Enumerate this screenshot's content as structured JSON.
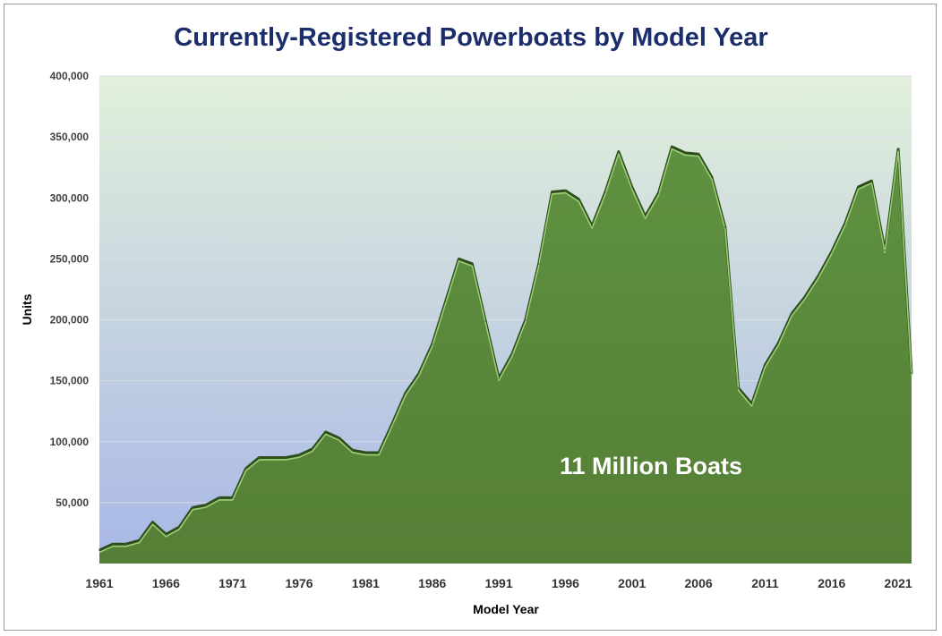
{
  "chart_data": {
    "type": "area",
    "title": "Currently-Registered Powerboats by Model Year",
    "xlabel": "Model Year",
    "ylabel": "Units",
    "annotation": "11 Million Boats",
    "xlim": [
      1961,
      2022
    ],
    "ylim": [
      0,
      400000
    ],
    "yticks": [
      50000,
      100000,
      150000,
      200000,
      250000,
      300000,
      350000,
      400000
    ],
    "ytick_labels": [
      "50,000",
      "100,000",
      "150,000",
      "200,000",
      "250,000",
      "300,000",
      "350,000",
      "400,000"
    ],
    "xticks": [
      1961,
      1966,
      1971,
      1976,
      1981,
      1986,
      1991,
      1996,
      2001,
      2006,
      2011,
      2016,
      2021
    ],
    "xtick_labels": [
      "1961",
      "1966",
      "1971",
      "1976",
      "1981",
      "1986",
      "1991",
      "1996",
      "2001",
      "2006",
      "2011",
      "2016",
      "2021"
    ],
    "grid": true,
    "colors": {
      "fill": "#5a8a3a",
      "edge_highlight": "#9bcf77",
      "title": "#1b2d6b",
      "bg_top": "#e2f0db",
      "bg_bottom": "#a8b7e6"
    },
    "x": [
      1961,
      1962,
      1963,
      1964,
      1965,
      1966,
      1967,
      1968,
      1969,
      1970,
      1971,
      1972,
      1973,
      1974,
      1975,
      1976,
      1977,
      1978,
      1979,
      1980,
      1981,
      1982,
      1983,
      1984,
      1985,
      1986,
      1987,
      1988,
      1989,
      1990,
      1991,
      1992,
      1993,
      1994,
      1995,
      1996,
      1997,
      1998,
      1999,
      2000,
      2001,
      2002,
      2003,
      2004,
      2005,
      2006,
      2007,
      2008,
      2009,
      2010,
      2011,
      2012,
      2013,
      2014,
      2015,
      2016,
      2017,
      2018,
      2019,
      2020,
      2021,
      2022
    ],
    "values": [
      11000,
      16000,
      16000,
      19000,
      34000,
      24000,
      30000,
      46000,
      48000,
      54000,
      54000,
      78000,
      87000,
      87000,
      87000,
      89000,
      94000,
      108000,
      103000,
      93000,
      91000,
      91000,
      115000,
      140000,
      156000,
      180000,
      215000,
      250000,
      246000,
      199000,
      152000,
      172000,
      200000,
      246000,
      305000,
      306000,
      299000,
      277000,
      305000,
      338000,
      309000,
      285000,
      304000,
      342000,
      337000,
      336000,
      317000,
      276000,
      144000,
      131000,
      163000,
      181000,
      205000,
      219000,
      236000,
      256000,
      279000,
      309000,
      314000,
      257000,
      340000,
      156000
    ]
  }
}
